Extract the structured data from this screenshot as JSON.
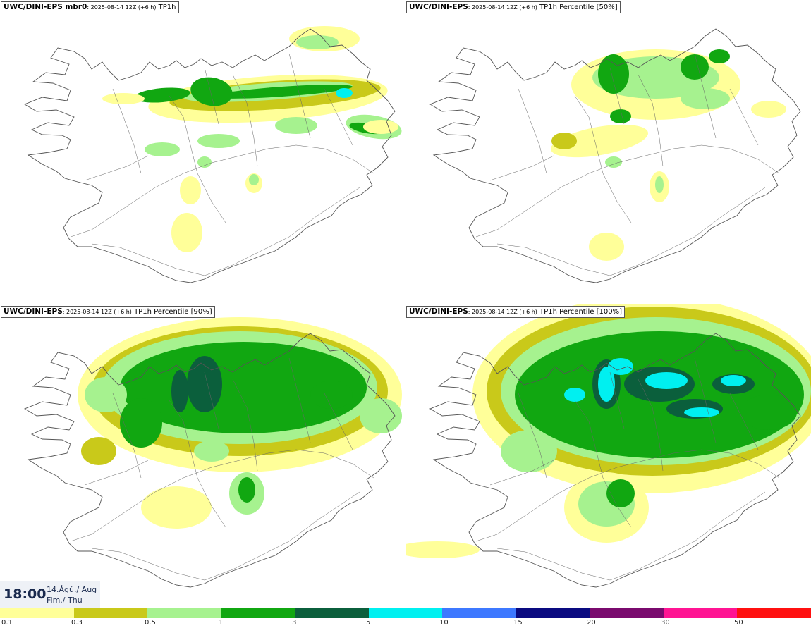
{
  "panels": [
    {
      "model": "UWC/DINI-EPS mbr0",
      "run": ": 2025-08-14 12Z (+6 h)",
      "field": " TP1h"
    },
    {
      "model": "UWC/DINI-EPS",
      "run": ": 2025-08-14 12Z (+6 h)",
      "field": " TP1h Percentile [50%]"
    },
    {
      "model": "UWC/DINI-EPS",
      "run": ": 2025-08-14 12Z (+6 h)",
      "field": " TP1h Percentile [90%]"
    },
    {
      "model": "UWC/DINI-EPS",
      "run": ": 2025-08-14 12Z (+6 h)",
      "field": " TP1h Percentile [100%]"
    }
  ],
  "valid_time": {
    "time": "18:00",
    "date": "14.Ágú./ Aug",
    "weekday": "Fim./ Thu"
  },
  "legend": {
    "colors": [
      "#ffff99",
      "#c9c91a",
      "#a6f28f",
      "#11a711",
      "#0b5f3c",
      "#00f0f0",
      "#3d78ff",
      "#0a0a80",
      "#7a0a6e",
      "#ff1493",
      "#ff1010"
    ],
    "ticks": [
      "0.1",
      "0.3",
      "0.5",
      "1",
      "3",
      "5",
      "10",
      "15",
      "20",
      "30",
      "50"
    ]
  },
  "map_icon": "iceland-coastline"
}
